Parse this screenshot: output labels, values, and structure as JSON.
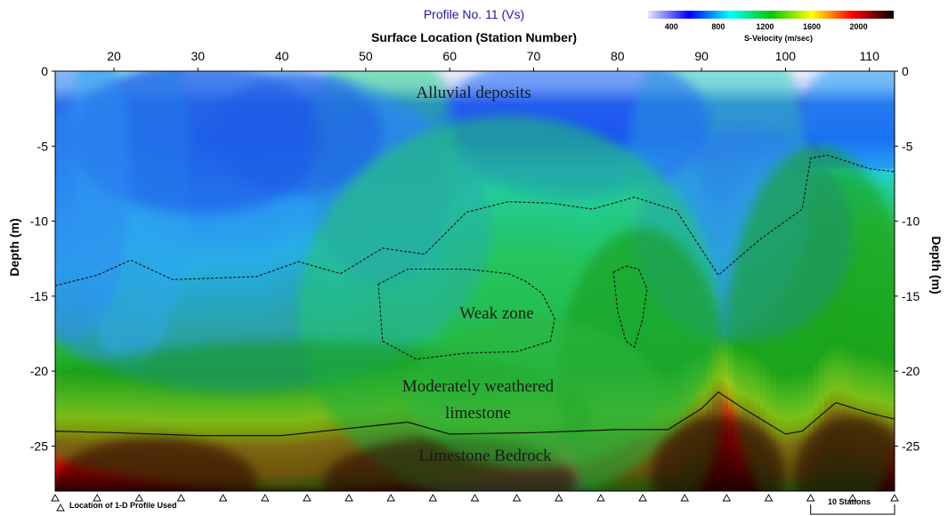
{
  "chart_data": {
    "type": "heatmap",
    "title": "Profile No. 11 (Vs)",
    "xlabel": "Surface Location (Station Number)",
    "ylabel": "Depth (m)",
    "x_ticks": [
      20,
      30,
      40,
      50,
      60,
      70,
      80,
      90,
      100,
      110
    ],
    "xlim": [
      13,
      113
    ],
    "y_ticks": [
      0,
      -5,
      -10,
      -15,
      -20,
      -25
    ],
    "ylim": [
      -28,
      0
    ],
    "colorbar": {
      "title": "S-Velocity (m/sec)",
      "ticks": [
        400,
        800,
        1200,
        1600,
        2000
      ],
      "range": [
        200,
        2300
      ],
      "colors": [
        "#e6e6fa",
        "#0000ff",
        "#00ffff",
        "#00c800",
        "#ffff00",
        "#ff0000",
        "#000000"
      ]
    },
    "layers": [
      {
        "name": "Alluvial deposits",
        "depth_range": [
          0,
          -5
        ],
        "velocity": "low"
      },
      {
        "name": "Weak zone",
        "depth_range": [
          -13,
          -19
        ],
        "velocity": "low"
      },
      {
        "name": "Moderately weathered limestone",
        "depth_range": [
          -14,
          -24
        ],
        "velocity": "medium"
      },
      {
        "name": "Limestone Bedrock",
        "depth_range": [
          -24,
          -28
        ],
        "velocity": "high"
      }
    ],
    "contours": {
      "upper_dashed": {
        "x": [
          13,
          18,
          22,
          27,
          37,
          42,
          47,
          52,
          57,
          62,
          67,
          72,
          77,
          82,
          87,
          92,
          97,
          102,
          103,
          105,
          110,
          113
        ],
        "y": [
          -14.3,
          -13.6,
          -12.6,
          -13.9,
          -13.7,
          -12.7,
          -13.5,
          -11.8,
          -12.2,
          -9.4,
          -8.7,
          -8.8,
          -9.2,
          -8.4,
          -9.3,
          -13.6,
          -11.2,
          -9.2,
          -5.8,
          -5.6,
          -6.5,
          -6.7
        ]
      },
      "bedrock_solid": {
        "x": [
          13,
          20,
          30,
          40,
          50,
          55,
          60,
          70,
          80,
          86,
          90,
          92,
          95,
          100,
          102,
          106,
          110,
          113
        ],
        "y": [
          -24.0,
          -24.1,
          -24.3,
          -24.3,
          -23.7,
          -23.4,
          -24.2,
          -24.1,
          -23.9,
          -23.9,
          -22.5,
          -21.4,
          -22.5,
          -24.2,
          -24.0,
          -22.1,
          -22.8,
          -23.2
        ]
      },
      "weak_zone_1": {
        "x": [
          51.5,
          55,
          62,
          67,
          69,
          71,
          72.5,
          72,
          68,
          62,
          56,
          52,
          51.5
        ],
        "y": [
          -14.2,
          -13.2,
          -13.2,
          -13.5,
          -14.0,
          -14.8,
          -16.5,
          -18.0,
          -18.7,
          -18.8,
          -19.2,
          -18.0,
          -14.2
        ]
      },
      "weak_zone_2": {
        "x": [
          79.5,
          81,
          82.5,
          83.5,
          83,
          82,
          81,
          80,
          79.5
        ],
        "y": [
          -13.4,
          -13.0,
          -13.2,
          -14.5,
          -16.5,
          -18.4,
          -18.0,
          -16.0,
          -13.4
        ]
      }
    },
    "profile_stations": [
      13,
      18,
      23,
      28,
      33,
      38,
      43,
      48,
      53,
      58,
      63,
      68,
      73,
      78,
      83,
      88,
      93,
      98,
      103,
      108,
      113
    ],
    "annotations": {
      "legend_note": "Location of 1-D Profile Used",
      "scale_note": "10 Stations"
    }
  }
}
